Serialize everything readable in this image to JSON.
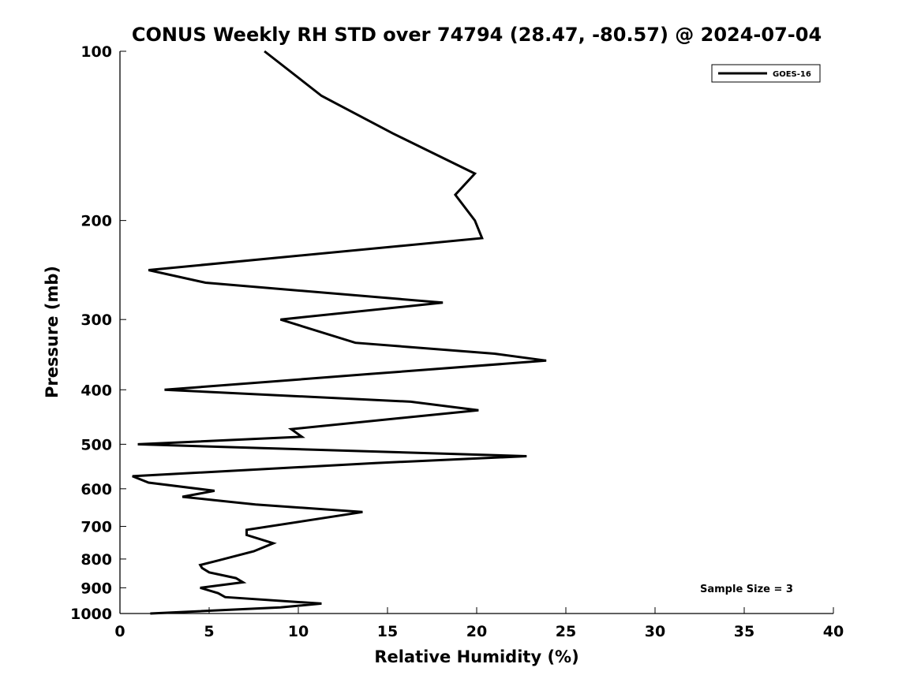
{
  "chart_data": {
    "type": "line",
    "title": "CONUS Weekly RH STD over 74794 (28.47, -80.57) @ 2024-07-04",
    "xlabel": "Relative Humidity (%)",
    "ylabel": "Pressure (mb)",
    "xlim": [
      0,
      40
    ],
    "ylim": [
      1000,
      100
    ],
    "y_scale": "log",
    "y_inverted": true,
    "x_ticks": [
      0,
      5,
      10,
      15,
      20,
      25,
      30,
      35,
      40
    ],
    "y_ticks": [
      100,
      200,
      300,
      400,
      500,
      600,
      700,
      800,
      900,
      1000
    ],
    "grid": false,
    "legend_position": "top-right",
    "series": [
      {
        "name": "GOES-16",
        "color": "#000000",
        "x": [
          1.7,
          9.0,
          11.3,
          5.9,
          5.5,
          4.5,
          6.9,
          6.5,
          5.0,
          4.6,
          4.5,
          5.5,
          7.5,
          8.6,
          7.1,
          7.1,
          13.6,
          7.6,
          3.5,
          5.3,
          1.6,
          0.7,
          14.3,
          22.8,
          1.0,
          10.2,
          9.6,
          20.1,
          16.3,
          2.5,
          14.0,
          23.9,
          21.0,
          13.2,
          9.0,
          18.1,
          4.8,
          1.6,
          20.3,
          19.9,
          18.8,
          19.9,
          15.3,
          11.3,
          8.1
        ],
        "y": [
          1000,
          975,
          960,
          935,
          920,
          900,
          880,
          865,
          845,
          830,
          820,
          805,
          775,
          750,
          725,
          710,
          660,
          640,
          620,
          605,
          585,
          570,
          540,
          525,
          500,
          485,
          470,
          435,
          420,
          400,
          375,
          355,
          345,
          330,
          300,
          280,
          258,
          245,
          215,
          200,
          180,
          165,
          140,
          120,
          100
        ]
      }
    ],
    "annotations": [
      "Sample Size = 3"
    ]
  }
}
